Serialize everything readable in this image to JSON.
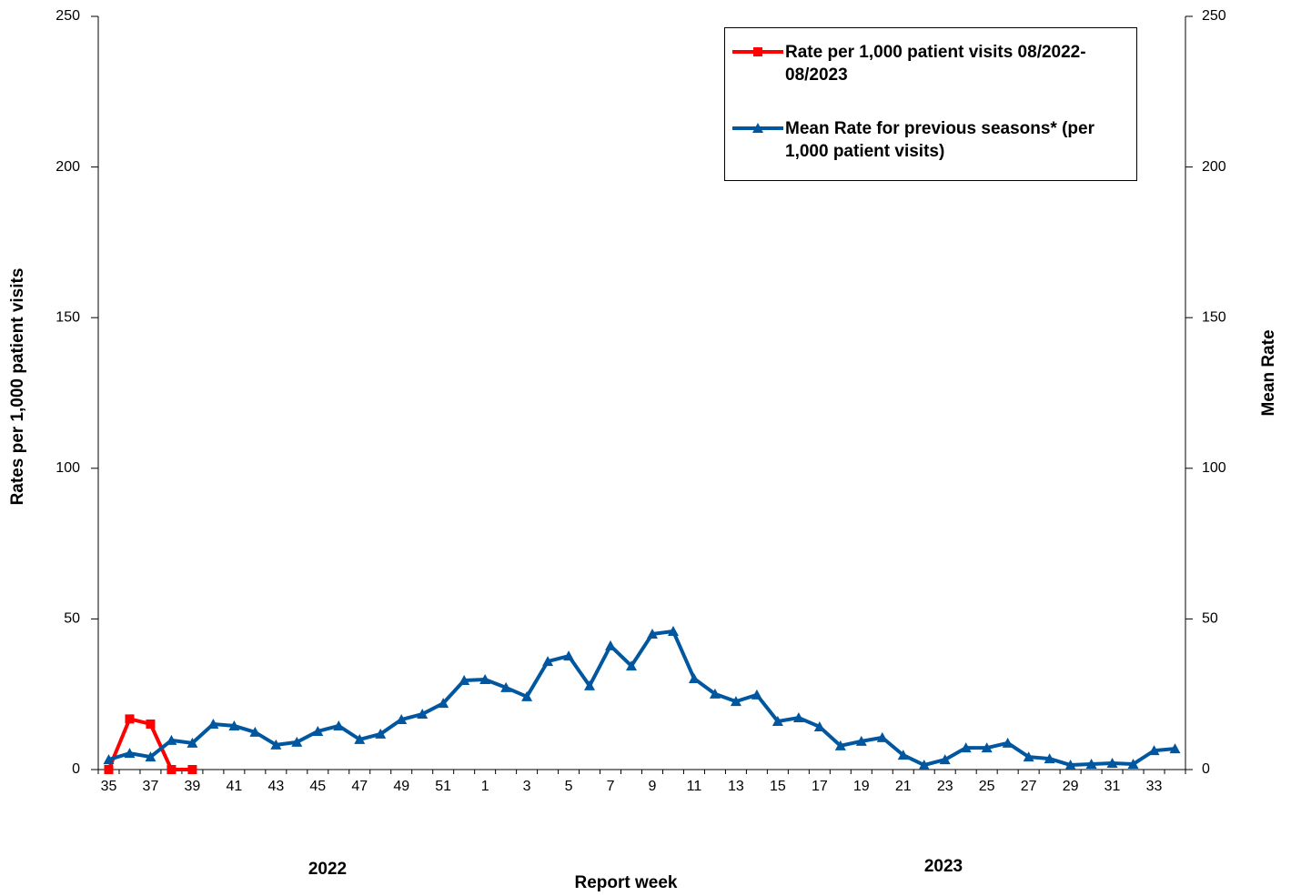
{
  "chart_data": {
    "type": "line",
    "ylabel": "Rates per 1,000 patient visits",
    "y2label": "Mean Rate",
    "xlabel": "Report week",
    "annotations": [
      "2022",
      "2023"
    ],
    "categories": [
      "35",
      null,
      "37",
      null,
      "39",
      null,
      "41",
      null,
      "43",
      null,
      "45",
      null,
      "47",
      null,
      "49",
      null,
      "51",
      null,
      "1",
      null,
      "3",
      null,
      "5",
      null,
      "7",
      null,
      "9",
      null,
      "11",
      null,
      "13",
      null,
      "15",
      null,
      "17",
      null,
      "19",
      null,
      "21",
      null,
      "23",
      null,
      "25",
      null,
      "27",
      null,
      "29",
      null,
      "31",
      null,
      "33",
      null
    ],
    "series": [
      {
        "name": "Rate per 1,000 patient visits 08/2022-08/2023",
        "color": "#ff0000",
        "marker": "square",
        "values": [
          0,
          16.8,
          15.1,
          0,
          0,
          null,
          null,
          null,
          null,
          null,
          null,
          null,
          null,
          null,
          null,
          null,
          null,
          null,
          null,
          null,
          null,
          null,
          null,
          null,
          null,
          null,
          null,
          null,
          null,
          null,
          null,
          null,
          null,
          null,
          null,
          null,
          null,
          null,
          null,
          null,
          null,
          null,
          null,
          null,
          null,
          null,
          null,
          null,
          null,
          null,
          null,
          null
        ]
      },
      {
        "name": "Mean Rate for previous seasons* (per 1,000 patient visits)",
        "color": "#0057a0",
        "marker": "triangle",
        "axis": "y2",
        "values": [
          3.3,
          5.4,
          4.2,
          9.7,
          8.8,
          15.1,
          14.5,
          12.4,
          8.2,
          9.1,
          12.7,
          14.5,
          10,
          11.8,
          16.6,
          18.4,
          22,
          29.6,
          29.9,
          27.2,
          24.2,
          35.9,
          37.7,
          27.8,
          41.1,
          34.4,
          45,
          45.9,
          30.2,
          25.1,
          22.6,
          24.8,
          16,
          17.2,
          14.2,
          7.9,
          9.4,
          10.6,
          4.8,
          1.5,
          3.3,
          7.2,
          7.2,
          8.8,
          4.2,
          3.6,
          1.5,
          1.8,
          2.1,
          1.8,
          6.3,
          6.9
        ]
      }
    ],
    "ylim": [
      0,
      250
    ],
    "yticks": [
      0,
      50,
      100,
      150,
      200,
      250
    ],
    "y2lim": [
      0,
      250
    ],
    "y2ticks": [
      0,
      50,
      100,
      150,
      200,
      250
    ],
    "grid": false,
    "legend": "upper right"
  }
}
